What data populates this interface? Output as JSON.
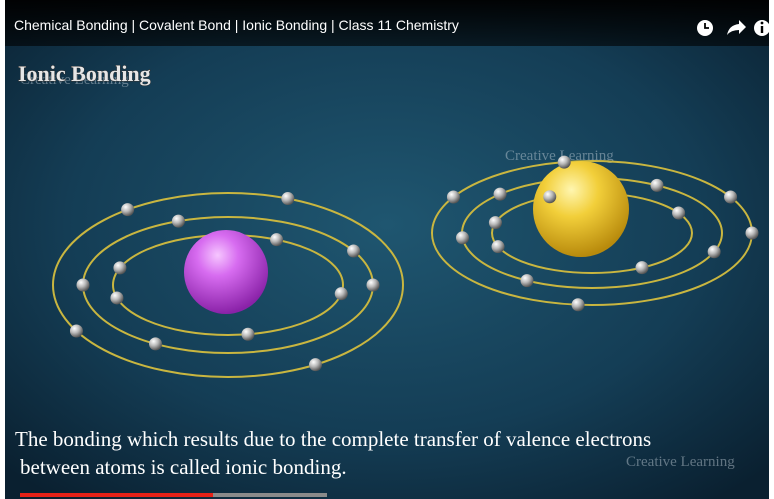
{
  "video": {
    "title": "Chemical Bonding | Covalent Bond | Ionic Bonding | Class 11 Chemistry",
    "overlay_title": "Ionic Bonding",
    "watermarks": [
      "Creative Learning",
      "Creative Learning",
      "Creative Learning"
    ],
    "caption": [
      "The bonding which results due to the complete transfer of valence electrons",
      "between atoms is called ionic bonding."
    ]
  }
}
